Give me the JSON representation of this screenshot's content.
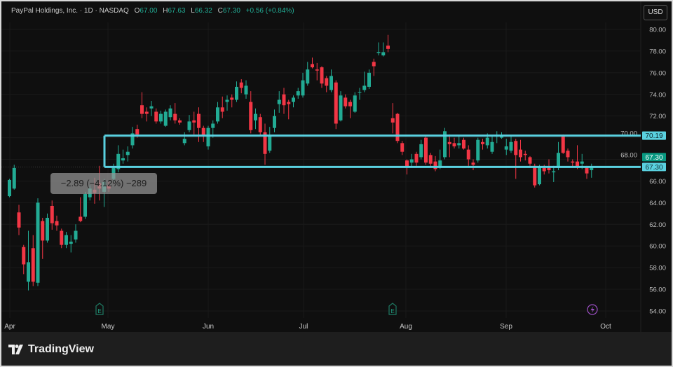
{
  "header": {
    "symbol": "PayPal Holdings, Inc. · 1D · NASDAQ",
    "open_label": "O",
    "open": "67.00",
    "high_label": "H",
    "high": "67.63",
    "low_label": "L",
    "low": "66.32",
    "close_label": "C",
    "close": "67.30",
    "change": "+0.56 (+0.84%)"
  },
  "currency_button": "USD",
  "measure_tooltip": "−2.89 (−4.12%) −289",
  "footer": {
    "brand": "TradingView"
  },
  "colors": {
    "up": "#22ab94",
    "down": "#f23645",
    "zone": "#5ad1e0",
    "background": "#0f0f0f",
    "last_price_badge": "#089981"
  },
  "chart_data": {
    "type": "candlestick",
    "ylim": [
      53.5,
      80.8
    ],
    "y_ticks": [
      "80.00",
      "78.00",
      "76.00",
      "74.00",
      "72.00",
      "70.00",
      "68.00",
      "66.00",
      "64.00",
      "62.00",
      "60.00",
      "58.00",
      "56.00",
      "54.00"
    ],
    "x_tick_labels": [
      "Apr",
      "May",
      "Jun",
      "Jul",
      "Aug",
      "Sep",
      "Oct"
    ],
    "grid": true,
    "zone": {
      "top": 70.19,
      "bottom": 67.3,
      "top_label": "70.19",
      "bottom_label": "67.30"
    },
    "last_price": {
      "value": 67.3,
      "label": "67.30"
    },
    "event_markers": [
      {
        "type": "earnings",
        "label": "E",
        "month": "May"
      },
      {
        "type": "earnings",
        "label": "E",
        "month": "Aug"
      },
      {
        "type": "dividend-split-lightning",
        "label": "",
        "month": "Oct"
      }
    ],
    "ohlc": [
      [
        64.6,
        66.2,
        64.5,
        66.1
      ],
      [
        65.3,
        67.5,
        65.2,
        67.2
      ],
      [
        63.1,
        63.8,
        61.0,
        61.7
      ],
      [
        59.9,
        60.1,
        57.4,
        58.3
      ],
      [
        56.7,
        61.4,
        55.9,
        58.5
      ],
      [
        59.8,
        61.0,
        56.3,
        56.7
      ],
      [
        56.6,
        64.4,
        56.3,
        64.0
      ],
      [
        62.3,
        62.6,
        58.8,
        60.5
      ],
      [
        60.5,
        63.0,
        60.3,
        62.6
      ],
      [
        63.7,
        64.2,
        61.5,
        62.1
      ],
      [
        62.3,
        62.8,
        61.4,
        61.9
      ],
      [
        61.4,
        61.6,
        59.8,
        60.1
      ],
      [
        60.1,
        61.3,
        59.8,
        61.0
      ],
      [
        60.2,
        61.0,
        59.4,
        60.4
      ],
      [
        60.6,
        62.0,
        60.3,
        61.4
      ],
      [
        62.7,
        64.5,
        62.2,
        62.3
      ],
      [
        62.7,
        65.0,
        62.5,
        64.8
      ],
      [
        64.5,
        65.6,
        64.2,
        65.3
      ],
      [
        65.2,
        66.3,
        63.9,
        64.9
      ],
      [
        65.8,
        67.4,
        64.2,
        65.3
      ],
      [
        65.0,
        66.2,
        63.6,
        65.9
      ],
      [
        65.6,
        66.0,
        65.0,
        65.3
      ],
      [
        66.2,
        67.6,
        65.9,
        67.2
      ],
      [
        67.1,
        69.3,
        66.8,
        68.5
      ],
      [
        67.9,
        68.9,
        67.6,
        68.1
      ],
      [
        68.4,
        69.2,
        67.8,
        68.7
      ],
      [
        69.3,
        71.0,
        69.0,
        70.4
      ],
      [
        70.8,
        71.2,
        70.0,
        70.3
      ],
      [
        73.0,
        74.2,
        71.8,
        72.2
      ],
      [
        72.4,
        72.8,
        71.5,
        72.2
      ],
      [
        72.7,
        73.4,
        72.0,
        72.9
      ],
      [
        72.4,
        72.7,
        71.3,
        71.5
      ],
      [
        71.5,
        72.5,
        71.3,
        72.2
      ],
      [
        71.1,
        72.6,
        71.0,
        72.4
      ],
      [
        71.9,
        73.0,
        71.6,
        72.7
      ],
      [
        72.2,
        73.2,
        71.3,
        71.6
      ],
      [
        71.6,
        71.8,
        71.2,
        71.4
      ],
      [
        69.5,
        70.5,
        69.3,
        69.9
      ],
      [
        70.7,
        72.1,
        70.5,
        71.5
      ],
      [
        71.6,
        72.4,
        70.3,
        71.4
      ],
      [
        72.2,
        72.8,
        69.6,
        70.9
      ],
      [
        70.9,
        71.1,
        69.6,
        70.2
      ],
      [
        69.2,
        71.1,
        68.9,
        70.9
      ],
      [
        70.9,
        71.6,
        70.0,
        71.3
      ],
      [
        71.5,
        73.3,
        71.3,
        72.8
      ],
      [
        72.8,
        73.8,
        71.8,
        72.4
      ],
      [
        73.3,
        73.9,
        72.5,
        73.5
      ],
      [
        73.7,
        74.0,
        72.8,
        73.5
      ],
      [
        73.5,
        75.2,
        73.3,
        74.7
      ],
      [
        75.1,
        75.4,
        74.1,
        74.6
      ],
      [
        74.0,
        75.3,
        73.6,
        74.8
      ],
      [
        73.3,
        74.3,
        70.4,
        70.7
      ],
      [
        71.6,
        72.7,
        70.8,
        72.2
      ],
      [
        71.9,
        72.2,
        70.2,
        70.5
      ],
      [
        70.5,
        71.3,
        67.5,
        68.5
      ],
      [
        68.8,
        71.0,
        68.6,
        70.2
      ],
      [
        70.9,
        72.6,
        70.5,
        72.0
      ],
      [
        73.1,
        74.3,
        72.3,
        73.5
      ],
      [
        74.0,
        74.6,
        72.2,
        73.0
      ],
      [
        73.3,
        73.5,
        71.7,
        73.1
      ],
      [
        73.3,
        73.9,
        72.8,
        73.7
      ],
      [
        73.9,
        74.6,
        73.6,
        74.3
      ],
      [
        73.9,
        76.0,
        73.7,
        75.3
      ],
      [
        75.0,
        77.0,
        74.8,
        76.3
      ],
      [
        76.8,
        77.4,
        76.4,
        76.5
      ],
      [
        76.3,
        76.9,
        75.3,
        76.2
      ],
      [
        76.5,
        76.6,
        74.6,
        75.0
      ],
      [
        75.5,
        75.7,
        74.2,
        74.8
      ],
      [
        74.4,
        76.3,
        74.2,
        75.7
      ],
      [
        75.1,
        75.3,
        70.8,
        71.3
      ],
      [
        71.6,
        74.3,
        71.5,
        73.9
      ],
      [
        73.7,
        74.0,
        72.7,
        72.9
      ],
      [
        73.3,
        73.5,
        71.8,
        72.9
      ],
      [
        72.4,
        74.2,
        72.3,
        73.9
      ],
      [
        74.2,
        74.6,
        73.5,
        74.2
      ],
      [
        74.4,
        76.1,
        74.2,
        74.8
      ],
      [
        74.7,
        76.3,
        74.5,
        76.0
      ],
      [
        77.0,
        77.3,
        75.7,
        76.6
      ],
      [
        77.8,
        78.8,
        77.6,
        77.9
      ],
      [
        77.6,
        78.8,
        77.5,
        77.9
      ],
      [
        78.5,
        79.5,
        77.9,
        78.2
      ],
      [
        71.8,
        73.2,
        70.4,
        71.4
      ],
      [
        72.2,
        72.3,
        69.5,
        69.7
      ],
      [
        69.5,
        69.7,
        68.4,
        68.7
      ],
      [
        67.9,
        68.0,
        66.6,
        67.3
      ],
      [
        67.7,
        68.5,
        67.3,
        68.0
      ],
      [
        68.5,
        68.7,
        67.4,
        67.7
      ],
      [
        68.2,
        69.8,
        68.0,
        69.4
      ],
      [
        70.0,
        70.2,
        67.5,
        67.7
      ],
      [
        68.4,
        68.6,
        67.4,
        67.6
      ],
      [
        67.8,
        68.3,
        66.9,
        67.1
      ],
      [
        67.3,
        68.9,
        67.1,
        67.9
      ],
      [
        68.2,
        70.9,
        68.0,
        70.6
      ],
      [
        69.6,
        70.3,
        68.2,
        69.4
      ],
      [
        69.5,
        70.0,
        69.0,
        69.2
      ],
      [
        69.3,
        70.2,
        69.0,
        69.5
      ],
      [
        69.8,
        70.0,
        68.9,
        69.0
      ],
      [
        68.9,
        69.3,
        67.4,
        68.0
      ],
      [
        67.7,
        68.0,
        67.0,
        67.5
      ],
      [
        67.9,
        70.0,
        67.7,
        69.8
      ],
      [
        69.6,
        69.9,
        68.9,
        69.4
      ],
      [
        69.3,
        70.4,
        69.0,
        70.0
      ],
      [
        68.7,
        70.2,
        68.5,
        69.6
      ],
      [
        70.1,
        70.6,
        69.5,
        70.2
      ],
      [
        70.0,
        70.5,
        69.9,
        70.2
      ],
      [
        68.9,
        69.9,
        68.4,
        69.2
      ],
      [
        68.8,
        70.1,
        68.6,
        69.6
      ],
      [
        69.7,
        69.9,
        66.2,
        68.4
      ],
      [
        68.9,
        69.8,
        67.8,
        68.2
      ],
      [
        68.5,
        68.8,
        67.9,
        68.4
      ],
      [
        68.2,
        68.3,
        67.4,
        67.6
      ],
      [
        67.4,
        67.6,
        65.4,
        65.6
      ],
      [
        65.7,
        67.5,
        65.6,
        67.3
      ],
      [
        67.2,
        67.5,
        66.6,
        66.9
      ],
      [
        67.3,
        68.0,
        66.7,
        67.0
      ],
      [
        66.8,
        67.4,
        65.9,
        66.9
      ],
      [
        67.2,
        69.6,
        67.0,
        68.6
      ],
      [
        70.1,
        70.3,
        68.5,
        68.6
      ],
      [
        68.8,
        69.0,
        67.8,
        68.2
      ],
      [
        67.8,
        68.0,
        67.3,
        67.7
      ],
      [
        67.8,
        69.3,
        67.1,
        67.3
      ],
      [
        67.6,
        68.5,
        67.1,
        67.8
      ],
      [
        67.3,
        67.4,
        66.2,
        66.7
      ],
      [
        67.0,
        67.6,
        66.3,
        67.3
      ]
    ]
  }
}
